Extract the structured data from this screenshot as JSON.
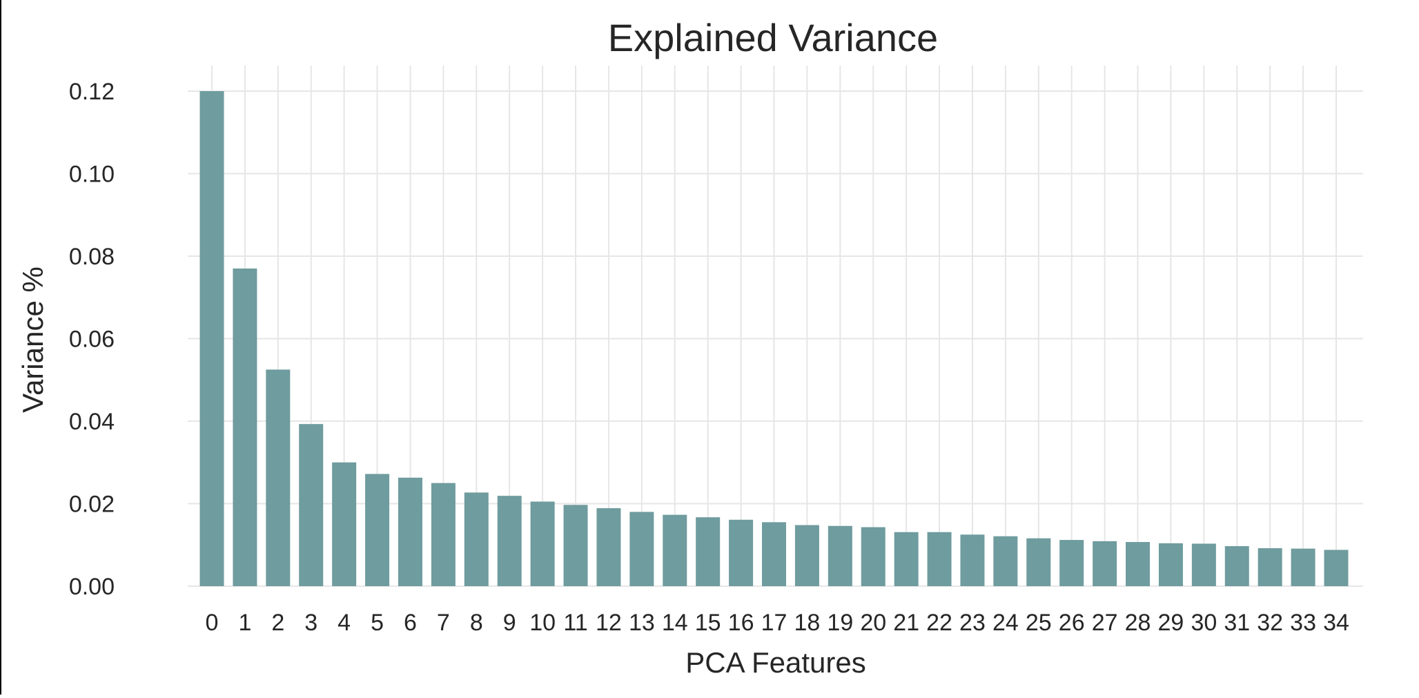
{
  "chart_data": {
    "type": "bar",
    "title": "Explained Variance",
    "xlabel": "PCA Features",
    "ylabel": "Variance %",
    "categories": [
      "0",
      "1",
      "2",
      "3",
      "4",
      "5",
      "6",
      "7",
      "8",
      "9",
      "10",
      "11",
      "12",
      "13",
      "14",
      "15",
      "16",
      "17",
      "18",
      "19",
      "20",
      "21",
      "22",
      "23",
      "24",
      "25",
      "26",
      "27",
      "28",
      "29",
      "30",
      "31",
      "32",
      "33",
      "34"
    ],
    "values": [
      0.12,
      0.077,
      0.0525,
      0.0393,
      0.03,
      0.0272,
      0.0263,
      0.025,
      0.0227,
      0.0219,
      0.0205,
      0.0197,
      0.0189,
      0.018,
      0.0173,
      0.0167,
      0.0161,
      0.0155,
      0.0148,
      0.0146,
      0.0143,
      0.0131,
      0.0131,
      0.0125,
      0.0121,
      0.0116,
      0.0112,
      0.0109,
      0.0107,
      0.0104,
      0.0103,
      0.0097,
      0.0092,
      0.0091,
      0.0088
    ],
    "ylim": [
      0,
      0.12
    ],
    "yticks": [
      "0.00",
      "0.02",
      "0.04",
      "0.06",
      "0.08",
      "0.10",
      "0.12"
    ],
    "grid": true,
    "bar_color": "#6f9c9e",
    "grid_color": "#e6e6e6",
    "text_color": "#262626"
  }
}
